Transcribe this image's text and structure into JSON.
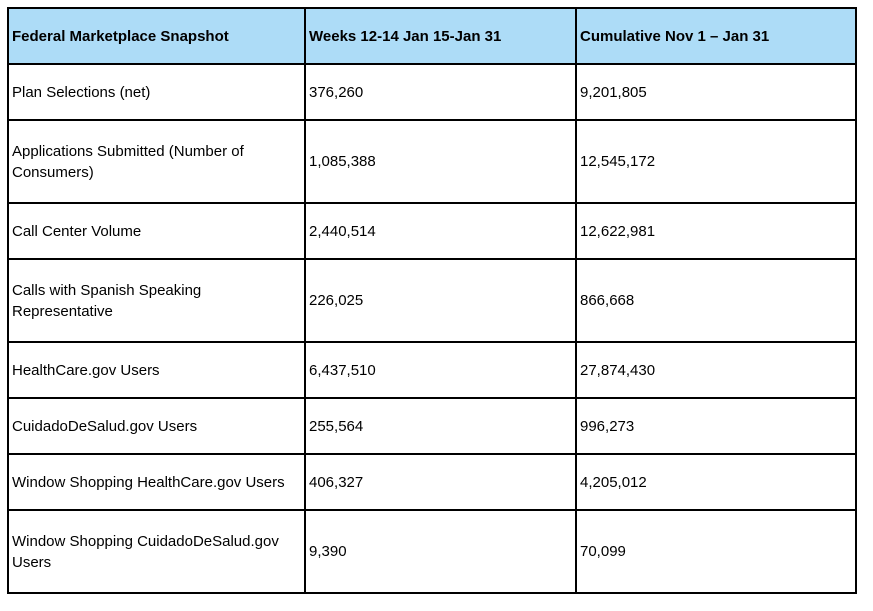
{
  "table": {
    "header_bg_color": "#addcf7",
    "border_color": "#000000",
    "columns": [
      "Federal Marketplace Snapshot",
      "Weeks 12-14 Jan 15-Jan 31",
      "Cumulative Nov 1 – Jan 31"
    ],
    "rows": [
      {
        "label": "Plan Selections (net)",
        "weeks": "376,260",
        "cumulative": "9,201,805"
      },
      {
        "label": "Applications Submitted (Number of Consumers)",
        "weeks": "1,085,388",
        "cumulative": "12,545,172"
      },
      {
        "label": "Call Center Volume",
        "weeks": "2,440,514",
        "cumulative": "12,622,981"
      },
      {
        "label": "Calls with Spanish Speaking Representative",
        "weeks": "226,025",
        "cumulative": "866,668"
      },
      {
        "label": "HealthCare.gov Users",
        "weeks": "6,437,510",
        "cumulative": "27,874,430"
      },
      {
        "label": "CuidadoDeSalud.gov Users",
        "weeks": "255,564",
        "cumulative": "996,273"
      },
      {
        "label": "Window Shopping HealthCare.gov Users",
        "weeks": "406,327",
        "cumulative": "4,205,012"
      },
      {
        "label": "Window Shopping CuidadoDeSalud.gov Users",
        "weeks": "9,390",
        "cumulative": "70,099"
      }
    ]
  },
  "chart_data": {
    "type": "table",
    "title": "Federal Marketplace Snapshot",
    "columns": [
      "Federal Marketplace Snapshot",
      "Weeks 12-14 Jan 15-Jan 31",
      "Cumulative Nov 1 – Jan 31"
    ],
    "rows": [
      [
        "Plan Selections (net)",
        "376,260",
        "9,201,805"
      ],
      [
        "Applications Submitted (Number of Consumers)",
        "1,085,388",
        "12,545,172"
      ],
      [
        "Call Center Volume",
        "2,440,514",
        "12,622,981"
      ],
      [
        "Calls with Spanish Speaking Representative",
        "226,025",
        "866,668"
      ],
      [
        "HealthCare.gov Users",
        "6,437,510",
        "27,874,430"
      ],
      [
        "CuidadoDeSalud.gov Users",
        "255,564",
        "996,273"
      ],
      [
        "Window Shopping HealthCare.gov Users",
        "406,327",
        "4,205,012"
      ],
      [
        "Window Shopping CuidadoDeSalud.gov Users",
        "9,390",
        "70,099"
      ]
    ]
  }
}
